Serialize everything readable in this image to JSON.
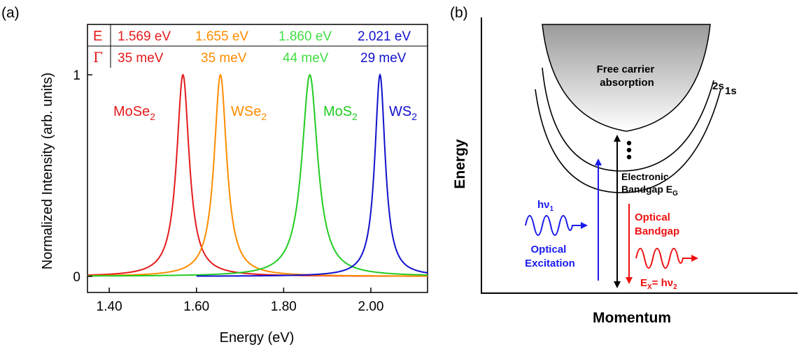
{
  "panel_a": {
    "label": "(a)",
    "table": {
      "row1_symbol": "E",
      "row2_symbol": "Γ",
      "energies": [
        "1.569 eV",
        "1.655 eV",
        "1.860 eV",
        "2.021 eV"
      ],
      "widths": [
        "35 meV",
        "35 meV",
        "44 meV",
        "29 meV"
      ]
    }
  },
  "chart_data": {
    "type": "line",
    "xlabel": "Energy (eV)",
    "ylabel": "Normalized Intensity (arb. units)",
    "xlim": [
      1.35,
      2.13
    ],
    "ylim": [
      -0.08,
      1.25
    ],
    "xticks": [
      1.4,
      1.6,
      1.8,
      2.0
    ],
    "xtick_labels": [
      "1.40",
      "1.60",
      "1.80",
      "2.00"
    ],
    "yticks": [
      0,
      1
    ],
    "ytick_labels": [
      "0",
      "1"
    ],
    "series": [
      {
        "label_main": "MoSe",
        "label_sub": "2",
        "center": 1.569,
        "fwhm": 0.035,
        "x_start": 1.35,
        "x_end": 2.13,
        "color": "#e41a1c"
      },
      {
        "label_main": "WSe",
        "label_sub": "2",
        "center": 1.655,
        "fwhm": 0.035,
        "x_start": 1.35,
        "x_end": 2.13,
        "color": "#ff8c00"
      },
      {
        "label_main": "MoS",
        "label_sub": "2",
        "center": 1.86,
        "fwhm": 0.044,
        "x_start": 1.35,
        "x_end": 2.13,
        "color": "#22cc22"
      },
      {
        "label_main": "WS",
        "label_sub": "2",
        "center": 2.021,
        "fwhm": 0.029,
        "x_start": 1.6,
        "x_end": 2.13,
        "color": "#1111cc"
      }
    ]
  },
  "panel_b": {
    "label": "(b)",
    "y_axis": "Energy",
    "x_axis": "Momentum",
    "free_carrier": [
      "Free carrier",
      "absorption"
    ],
    "level_2s": "2s",
    "level_1s": "1s",
    "bandgap_line1": "Electronic",
    "bandgap_line2": "Bandgap E",
    "bandgap_sub": "G",
    "excitation_hv": "hν",
    "excitation_sub": "1",
    "optical_excitation": [
      "Optical",
      "Excitation"
    ],
    "optical_bandgap": [
      "Optical",
      "Bandgap"
    ],
    "ex_eq_main": "E",
    "ex_eq_sub": "X",
    "ex_eq_rest": "= hν",
    "ex_eq_sub2": "2",
    "colors": {
      "excitation": "#1a1aee",
      "bandgap": "#ee1111",
      "black": "#000000"
    }
  }
}
